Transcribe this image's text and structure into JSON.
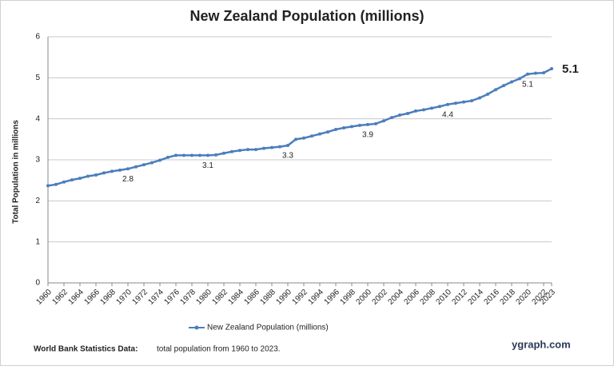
{
  "chart_data": {
    "type": "line",
    "title": "New Zealand Population (millions)",
    "y_label": "Total Population  in millions",
    "x": [
      1960,
      1961,
      1962,
      1963,
      1964,
      1965,
      1966,
      1967,
      1968,
      1969,
      1970,
      1971,
      1972,
      1973,
      1974,
      1975,
      1976,
      1977,
      1978,
      1979,
      1980,
      1981,
      1982,
      1983,
      1984,
      1985,
      1986,
      1987,
      1988,
      1989,
      1990,
      1991,
      1992,
      1993,
      1994,
      1995,
      1996,
      1997,
      1998,
      1999,
      2000,
      2001,
      2002,
      2003,
      2004,
      2005,
      2006,
      2007,
      2008,
      2009,
      2010,
      2011,
      2012,
      2013,
      2014,
      2015,
      2016,
      2017,
      2018,
      2019,
      2020,
      2021,
      2022,
      2023
    ],
    "series": [
      {
        "name": "New Zealand Population (millions)",
        "color": "#4a7ebb",
        "values": [
          2.37,
          2.4,
          2.46,
          2.51,
          2.55,
          2.6,
          2.63,
          2.68,
          2.72,
          2.75,
          2.78,
          2.83,
          2.88,
          2.93,
          2.99,
          3.06,
          3.11,
          3.11,
          3.11,
          3.11,
          3.11,
          3.12,
          3.16,
          3.2,
          3.23,
          3.25,
          3.25,
          3.28,
          3.3,
          3.32,
          3.35,
          3.5,
          3.53,
          3.58,
          3.63,
          3.68,
          3.74,
          3.78,
          3.81,
          3.84,
          3.86,
          3.88,
          3.95,
          4.03,
          4.09,
          4.13,
          4.19,
          4.22,
          4.26,
          4.3,
          4.35,
          4.38,
          4.41,
          4.44,
          4.51,
          4.6,
          4.71,
          4.81,
          4.9,
          4.98,
          5.09,
          5.11,
          5.12,
          5.22
        ]
      }
    ],
    "xlim": [
      1960,
      2023
    ],
    "xticks": [
      1960,
      1962,
      1964,
      1966,
      1968,
      1970,
      1972,
      1974,
      1976,
      1978,
      1980,
      1982,
      1984,
      1986,
      1988,
      1990,
      1992,
      1994,
      1996,
      1998,
      2000,
      2002,
      2004,
      2006,
      2008,
      2010,
      2012,
      2014,
      2016,
      2018,
      2020,
      2022,
      2023
    ],
    "ylim": [
      0,
      6
    ],
    "yticks": [
      0,
      1,
      2,
      3,
      4,
      5,
      6
    ],
    "grid": true,
    "annotations": [
      {
        "x": 1970,
        "label": "2.8"
      },
      {
        "x": 1980,
        "label": "3.1"
      },
      {
        "x": 1990,
        "label": "3.3"
      },
      {
        "x": 2000,
        "label": "3.9"
      },
      {
        "x": 2010,
        "label": "4.4"
      },
      {
        "x": 2020,
        "label": "5.1"
      }
    ],
    "headline": "5.1",
    "footer_source": "World Bank Statistics Data:",
    "footer_text": "total population from 1960 to 2023.",
    "brand": "ygraph.com"
  }
}
